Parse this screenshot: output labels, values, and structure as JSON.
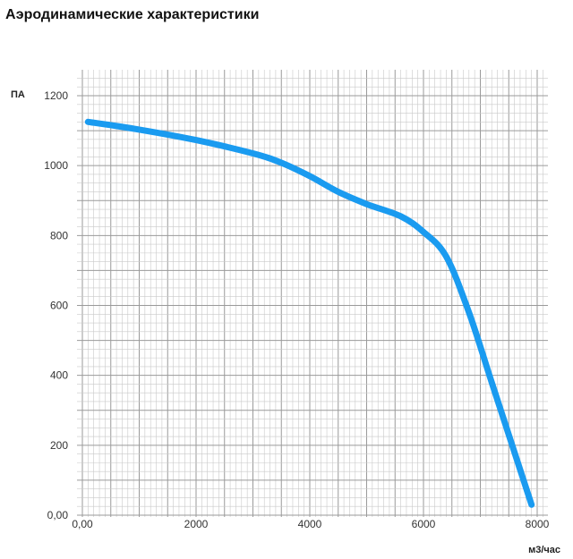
{
  "chart_data": {
    "type": "line",
    "title": "Аэродинамические характеристики",
    "xlabel": "м3/час",
    "ylabel": "ПА",
    "xlim": [
      0,
      8000
    ],
    "ylim": [
      0,
      1200
    ],
    "x_ticks": [
      {
        "value": 0,
        "label": "0,00"
      },
      {
        "value": 2000,
        "label": "2000"
      },
      {
        "value": 4000,
        "label": "4000"
      },
      {
        "value": 6000,
        "label": "6000"
      },
      {
        "value": 8000,
        "label": "8000"
      }
    ],
    "y_ticks": [
      {
        "value": 0,
        "label": "0,00"
      },
      {
        "value": 200,
        "label": "200"
      },
      {
        "value": 400,
        "label": "400"
      },
      {
        "value": 600,
        "label": "600"
      },
      {
        "value": 800,
        "label": "800"
      },
      {
        "value": 1000,
        "label": "1000"
      },
      {
        "value": 1200,
        "label": "1200"
      }
    ],
    "grid": true,
    "series": [
      {
        "color": "#1a9bf0",
        "x": [
          100,
          1000,
          2000,
          3000,
          3500,
          4000,
          4500,
          5000,
          5600,
          6000,
          6400,
          6800,
          7200,
          7600,
          7900
        ],
        "y": [
          1125,
          1103,
          1073,
          1035,
          1008,
          970,
          925,
          890,
          855,
          810,
          740,
          580,
          380,
          180,
          30
        ]
      }
    ]
  }
}
